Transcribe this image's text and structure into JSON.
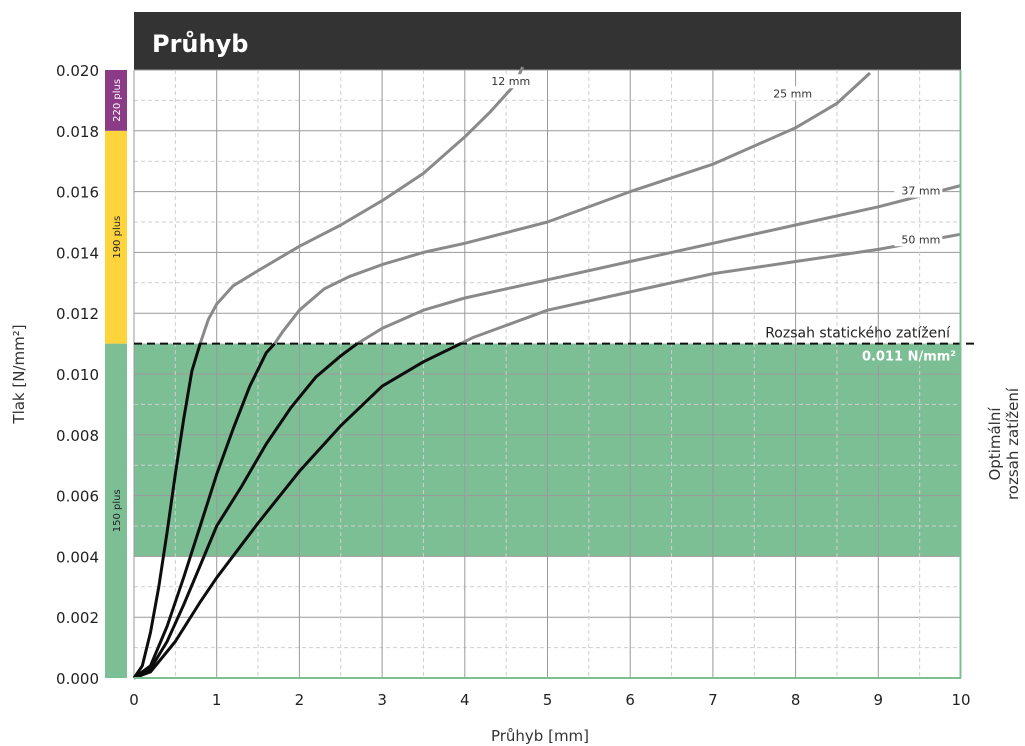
{
  "chart_data": {
    "type": "line",
    "title": "Průhyb",
    "xlabel": "Průhyb [mm]",
    "ylabel": "Tlak [N/mm²]",
    "xlim": [
      0,
      10
    ],
    "ylim": [
      0,
      0.02
    ],
    "x_ticks": [
      "0",
      "1",
      "2",
      "3",
      "4",
      "5",
      "6",
      "7",
      "8",
      "9",
      "10"
    ],
    "y_ticks": [
      "0.000",
      "0.002",
      "0.004",
      "0.006",
      "0.008",
      "0.010",
      "0.012",
      "0.014",
      "0.016",
      "0.018",
      "0.020"
    ],
    "grid": true,
    "optimal_range": {
      "y_from": 0.004,
      "y_to": 0.011,
      "color": "#7dbf95",
      "label": "Optimální rozsah zatížení"
    },
    "static_load": {
      "y": 0.011,
      "label": "Rozsah statického zatížení",
      "value_label": "0.011 N/mm²"
    },
    "bands": [
      {
        "label": "150 plus",
        "from": 0.0,
        "to": 0.011,
        "color": "#7dbf95"
      },
      {
        "label": "190 plus",
        "from": 0.011,
        "to": 0.018,
        "color": "#fdd43c"
      },
      {
        "label": "220 plus",
        "from": 0.018,
        "to": 0.02,
        "color": "#8b3a86"
      }
    ],
    "series": [
      {
        "name": "12 mm",
        "x": [
          0,
          0.1,
          0.2,
          0.3,
          0.4,
          0.5,
          0.6,
          0.7,
          0.8,
          0.85,
          0.9,
          1.0,
          1.2,
          1.5,
          2.0,
          2.5,
          3.0,
          3.5,
          4.0,
          4.3,
          4.6,
          4.7
        ],
        "y": [
          0,
          0.0004,
          0.0015,
          0.003,
          0.0048,
          0.0067,
          0.0085,
          0.0101,
          0.011,
          0.0114,
          0.0118,
          0.0123,
          0.0129,
          0.0134,
          0.0142,
          0.0149,
          0.0157,
          0.0166,
          0.0178,
          0.0186,
          0.0195,
          0.0201
        ]
      },
      {
        "name": "25 mm",
        "x": [
          0,
          0.2,
          0.4,
          0.6,
          0.8,
          1.0,
          1.2,
          1.4,
          1.6,
          1.7,
          1.8,
          2.0,
          2.3,
          2.6,
          3.0,
          3.5,
          4.0,
          5.0,
          6.0,
          7.0,
          8.0,
          8.5,
          8.9
        ],
        "y": [
          0,
          0.0004,
          0.0017,
          0.0033,
          0.005,
          0.0067,
          0.0082,
          0.0096,
          0.0107,
          0.011,
          0.0114,
          0.0121,
          0.0128,
          0.0132,
          0.0136,
          0.014,
          0.0143,
          0.015,
          0.016,
          0.0169,
          0.0181,
          0.0189,
          0.0199
        ]
      },
      {
        "name": "37 mm",
        "x": [
          0,
          0.2,
          0.4,
          0.6,
          0.8,
          1.0,
          1.3,
          1.6,
          1.9,
          2.2,
          2.5,
          2.7,
          3.0,
          3.5,
          4.0,
          5.0,
          6.0,
          7.0,
          8.0,
          9.0,
          10.0
        ],
        "y": [
          0,
          0.0003,
          0.0012,
          0.0024,
          0.0037,
          0.005,
          0.0063,
          0.0077,
          0.0089,
          0.0099,
          0.0106,
          0.011,
          0.0115,
          0.0121,
          0.0125,
          0.0131,
          0.0137,
          0.0143,
          0.0149,
          0.0155,
          0.0162
        ]
      },
      {
        "name": "50 mm",
        "x": [
          0,
          0.2,
          0.5,
          0.8,
          1.0,
          1.5,
          2.0,
          2.5,
          3.0,
          3.5,
          3.8,
          4.1,
          4.5,
          5.0,
          6.0,
          7.0,
          8.0,
          9.0,
          10.0
        ],
        "y": [
          0,
          0.0002,
          0.0012,
          0.0025,
          0.0033,
          0.0051,
          0.0068,
          0.0083,
          0.0096,
          0.0104,
          0.0108,
          0.0112,
          0.0116,
          0.0121,
          0.0127,
          0.0133,
          0.0137,
          0.0141,
          0.0146
        ]
      }
    ]
  }
}
